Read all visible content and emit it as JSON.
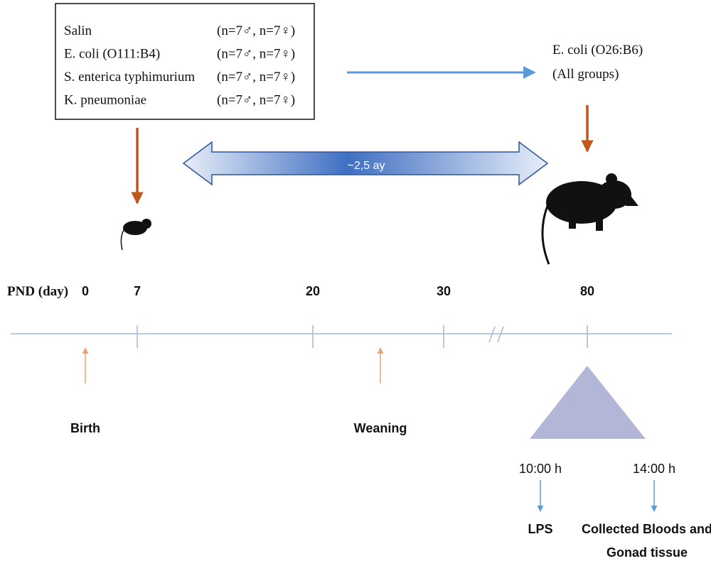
{
  "groups": [
    {
      "name": "Salin",
      "n": "(n=7♂, n=7♀)"
    },
    {
      "name": "E. coli (O111:B4)",
      "n": "(n=7♂, n=7♀)"
    },
    {
      "name": "S. enterica typhimurium",
      "n": "(n=7♂, n=7♀)"
    },
    {
      "name": "K. pneumoniae",
      "n": "(n=7♂, n=7♀)"
    }
  ],
  "adult_challenge": {
    "lines": [
      "E. coli (O26:B6)",
      "(All groups)"
    ]
  },
  "duration": "~2,5 ay",
  "timeline": {
    "label": "PND (day)",
    "days": [
      "0",
      "7",
      "20",
      "30",
      "80"
    ]
  },
  "events": [
    "Birth",
    "Weaning"
  ],
  "sampling": {
    "times": [
      "10:00 h",
      "14:00 h"
    ],
    "outcomes": [
      {
        "lines": [
          "LPS"
        ]
      },
      {
        "lines": [
          "Collected Bloods and",
          "Gonad tissue"
        ]
      }
    ]
  }
}
